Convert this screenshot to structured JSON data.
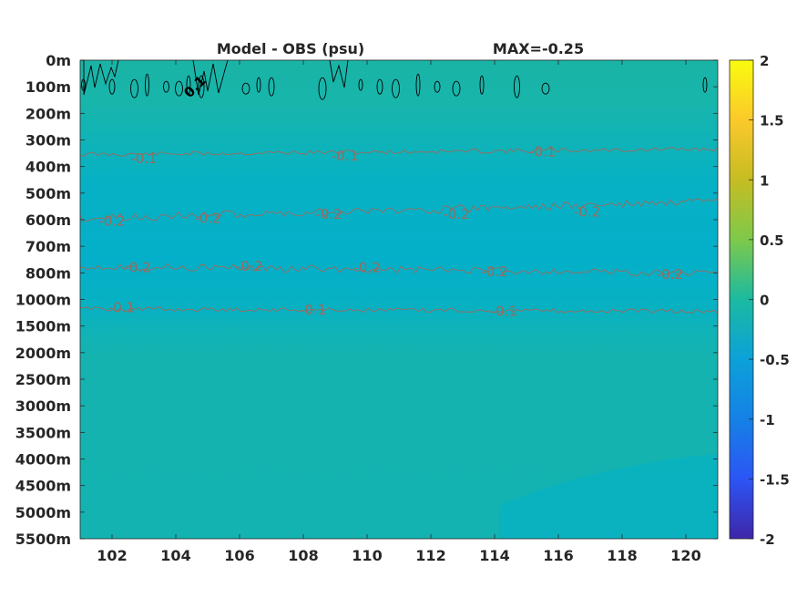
{
  "chart_data": {
    "type": "heatmap",
    "title": "Model - OBS (psu)",
    "subtitle": "MAX=-0.25",
    "xlabel": "",
    "ylabel": "",
    "x_ticks": [
      "102",
      "104",
      "106",
      "108",
      "110",
      "112",
      "114",
      "116",
      "118",
      "120"
    ],
    "x_tick_values": [
      102,
      104,
      106,
      108,
      110,
      112,
      114,
      116,
      118,
      120
    ],
    "xlim": [
      101,
      121
    ],
    "y_ticks": [
      "0m",
      "100m",
      "200m",
      "300m",
      "400m",
      "500m",
      "600m",
      "700m",
      "800m",
      "1000m",
      "1500m",
      "2000m",
      "2500m",
      "3000m",
      "3500m",
      "4000m",
      "4500m",
      "5000m",
      "5500m"
    ],
    "colorbar": {
      "ticks": [
        "2",
        "1.5",
        "1",
        "0.5",
        "0",
        "-0.5",
        "-1",
        "-1.5",
        "-2"
      ],
      "tick_values": [
        2,
        1.5,
        1,
        0.5,
        0,
        -0.5,
        -1,
        -1.5,
        -2
      ],
      "range": [
        -2,
        2
      ],
      "colormap": "parula"
    },
    "field_colors": {
      "surface": "#19b5a8",
      "mid_negative": "#04b1c8",
      "deep": "#13b3b2"
    },
    "contours": [
      {
        "level": "0.1",
        "color": "#000000",
        "labels": [
          {
            "text": "0.1",
            "x": 104.6,
            "depth_index": 1.0
          }
        ]
      },
      {
        "level": "-0.1",
        "color": "#9b6a5c",
        "labels": [
          {
            "text": "-0.1",
            "x": 103.0,
            "depth_index": 3.7
          },
          {
            "text": "-0.1",
            "x": 109.3,
            "depth_index": 3.6
          },
          {
            "text": "-0.1",
            "x": 115.5,
            "depth_index": 3.45
          }
        ]
      },
      {
        "level": "-0.2",
        "color": "#9b6a5c",
        "labels": [
          {
            "text": "-0.2",
            "x": 102.0,
            "depth_index": 6.05
          },
          {
            "text": "-0.2",
            "x": 105.0,
            "depth_index": 5.95
          },
          {
            "text": "-0.2",
            "x": 108.8,
            "depth_index": 5.8
          },
          {
            "text": "-0.2",
            "x": 112.8,
            "depth_index": 5.8
          },
          {
            "text": "-0.2",
            "x": 116.9,
            "depth_index": 5.7
          }
        ]
      },
      {
        "level": "-0.2",
        "color": "#9b6a5c",
        "labels": [
          {
            "text": "-0.2",
            "x": 102.8,
            "depth_index": 7.8
          },
          {
            "text": "-0.2",
            "x": 106.3,
            "depth_index": 7.75
          },
          {
            "text": "-0.2",
            "x": 110.0,
            "depth_index": 7.8
          },
          {
            "text": "-0.2",
            "x": 114.0,
            "depth_index": 7.95
          },
          {
            "text": "-0.2",
            "x": 119.5,
            "depth_index": 8.05
          }
        ]
      },
      {
        "level": "-0.1",
        "color": "#9b6a5c",
        "labels": [
          {
            "text": "-0.1",
            "x": 102.3,
            "depth_index": 9.3
          },
          {
            "text": "-0.1",
            "x": 108.3,
            "depth_index": 9.4
          },
          {
            "text": "-0.1",
            "x": 114.3,
            "depth_index": 9.45
          }
        ]
      }
    ]
  }
}
